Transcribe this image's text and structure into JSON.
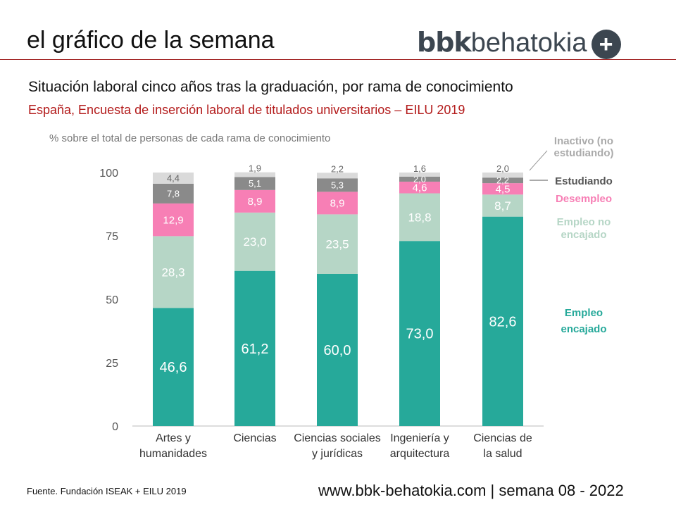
{
  "header": {
    "title": "el gráfico de la semana",
    "logo_bold": "bbk",
    "logo_light": "behatokia",
    "logo_icon": "plus-circle-icon"
  },
  "subtitle": "Situación laboral cinco años tras la graduación, por rama de conocimiento",
  "subtitle2": "España, Encuesta de inserción laboral de titulados universitarios – EILU 2019",
  "footer": {
    "source": "Fuente. Fundación ISEAK + EILU 2019",
    "site": "www.bbk-behatokia.com | semana 08 - 2022"
  },
  "chart_data": {
    "type": "bar",
    "stacked": true,
    "ylabel": "% sobre el total de personas de cada rama de conocimiento",
    "ylim": [
      0,
      100
    ],
    "yticks": [
      0,
      25,
      50,
      75,
      100
    ],
    "categories": [
      [
        "Artes y",
        "humanidades"
      ],
      [
        "Ciencias"
      ],
      [
        "Ciencias sociales",
        "y jurídicas"
      ],
      [
        "Ingeniería y",
        "arquitectura"
      ],
      [
        "Ciencias de",
        "la salud"
      ]
    ],
    "series": [
      {
        "name": "Empleo encajado",
        "legend": [
          "Empleo",
          "encajado"
        ],
        "color": "#26a99a",
        "label_color": "#ffffff",
        "values": [
          46.6,
          61.2,
          60.0,
          73.0,
          82.6
        ]
      },
      {
        "name": "Empleo no encajado",
        "legend": [
          "Empleo no",
          "encajado"
        ],
        "color": "#b6d6c6",
        "label_color": "#ffffff",
        "values": [
          28.3,
          23.0,
          23.5,
          18.8,
          8.7
        ]
      },
      {
        "name": "Desempleo",
        "legend": [
          "Desempleo"
        ],
        "color": "#f77fb5",
        "label_color": "#ffffff",
        "values": [
          12.9,
          8.9,
          8.9,
          4.6,
          4.5
        ]
      },
      {
        "name": "Estudiando",
        "legend": [
          "Estudiando"
        ],
        "color": "#8a8a8a",
        "label_color": "#ffffff",
        "values": [
          7.8,
          5.1,
          5.3,
          2.0,
          2.2
        ]
      },
      {
        "name": "Inactivo (no estudiando)",
        "legend": [
          "Inactivo (no",
          "estudiando)"
        ],
        "color": "#dadada",
        "label_color": "#666666",
        "values": [
          4.4,
          1.9,
          2.2,
          1.6,
          2.0
        ]
      }
    ],
    "legend_colors": [
      "#26a99a",
      "#b6d6c6",
      "#f77fb5",
      "#555555",
      "#aaaaaa"
    ]
  }
}
